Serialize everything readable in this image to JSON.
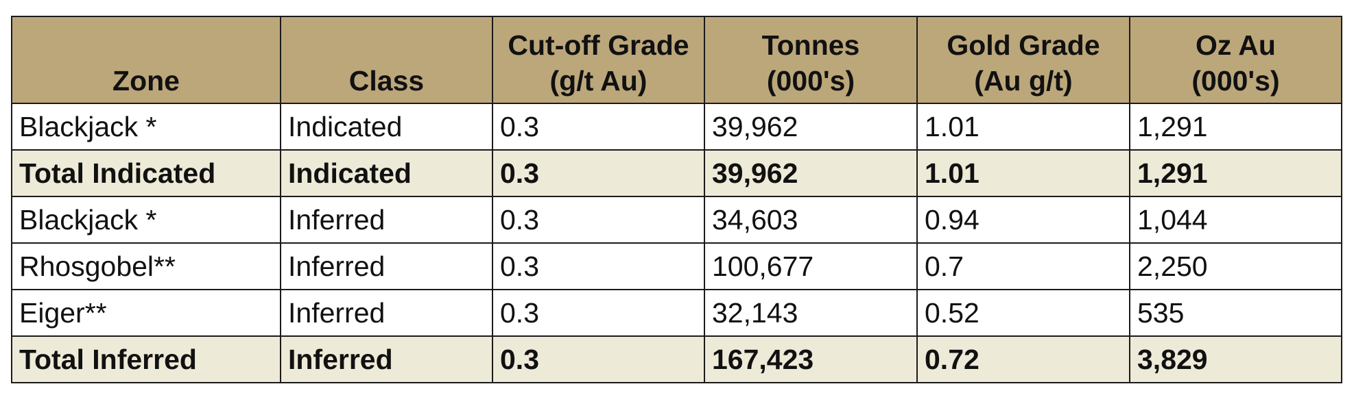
{
  "table": {
    "columns": [
      {
        "line1": "Zone",
        "line2": ""
      },
      {
        "line1": "Class",
        "line2": ""
      },
      {
        "line1": "Cut-off Grade",
        "line2": "(g/t Au)"
      },
      {
        "line1": "Tonnes",
        "line2": "(000's)"
      },
      {
        "line1": "Gold Grade",
        "line2": "(Au g/t)"
      },
      {
        "line1": "Oz Au",
        "line2": "(000's)"
      }
    ],
    "rows": [
      {
        "cells": [
          "Blackjack *",
          "Indicated",
          "0.3",
          "39,962",
          "1.01",
          "1,291"
        ]
      },
      {
        "cells": [
          "Total Indicated",
          "Indicated",
          "0.3",
          "39,962",
          "1.01",
          "1,291"
        ]
      },
      {
        "cells": [
          "Blackjack *",
          "Inferred",
          "0.3",
          "34,603",
          "0.94",
          "1,044"
        ]
      },
      {
        "cells": [
          "Rhosgobel**",
          "Inferred",
          "0.3",
          "100,677",
          "0.7",
          "2,250"
        ]
      },
      {
        "cells": [
          "Eiger**",
          "Inferred",
          "0.3",
          "32,143",
          "0.52",
          "535"
        ]
      },
      {
        "cells": [
          "Total Inferred",
          "Inferred",
          "0.3",
          "167,423",
          "0.72",
          "3,829"
        ]
      }
    ]
  },
  "colors": {
    "header_background": "#bca77b",
    "total_row_background": "#eeead8",
    "data_row_background": "#ffffff",
    "border": "#1a1a1a"
  }
}
